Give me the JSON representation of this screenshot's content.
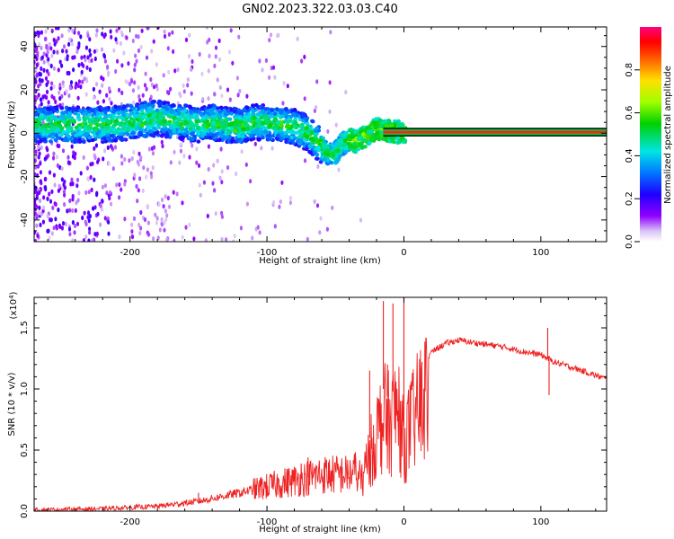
{
  "title": "GN02.2023.322.03.03.C40",
  "chart_data": [
    {
      "type": "heatmap",
      "name": "spectrogram",
      "xlabel": "Height of straight line (km)",
      "ylabel": "Frequency (Hz)",
      "xlim": [
        -270,
        148
      ],
      "ylim": [
        -50,
        49
      ],
      "xticks": [
        -200,
        -100,
        0,
        100
      ],
      "yticks": [
        40,
        20,
        0,
        -20,
        -40
      ],
      "ridge": {
        "x": [
          -270,
          -240,
          -220,
          -200,
          -190,
          -180,
          -170,
          -160,
          -150,
          -140,
          -130,
          -120,
          -110,
          -100,
          -90,
          -80,
          -70,
          -60,
          -55,
          -50,
          -45,
          -40,
          -35,
          -30,
          -25,
          -20,
          -15,
          -10,
          -5,
          0,
          10,
          20,
          40,
          60,
          80,
          100,
          120,
          148
        ],
        "y": [
          4,
          4,
          4,
          5,
          6,
          7,
          6,
          5,
          4,
          5,
          4,
          3,
          5,
          5,
          4,
          3,
          0,
          -6,
          -10,
          -9,
          -5,
          -3,
          -4,
          -2,
          0,
          2,
          1,
          1,
          0.5,
          0.5,
          0.5,
          0.5,
          0.5,
          0.5,
          0.5,
          0.5,
          0.5,
          0.5
        ]
      },
      "tone_line": {
        "x_start": -15,
        "x_end": 148,
        "y": 0.5
      }
    },
    {
      "type": "colorbar",
      "label": "Normalized spectral amplitude",
      "range": [
        0,
        1
      ],
      "ticks": [
        "0.0",
        "0.2",
        "0.4",
        "0.6",
        "0.8"
      ],
      "tick_values": [
        0,
        0.2,
        0.4,
        0.6,
        0.8
      ]
    },
    {
      "type": "line",
      "name": "snr",
      "xlabel": "Height of straight line (km)",
      "ylabel": "SNR (10 * v/v)",
      "scale_label": "(x10",
      "scale_exp": "4",
      "scale_close": ")",
      "xlim": [
        -270,
        148
      ],
      "ylim": [
        0,
        1.75
      ],
      "xticks": [
        -200,
        -100,
        0,
        100
      ],
      "yticks": [
        "0.0",
        "0.5",
        "1.0",
        "1.5"
      ],
      "ytick_values": [
        0,
        0.5,
        1.0,
        1.5
      ],
      "color": "#ee2222",
      "envelope": {
        "x": [
          -270,
          -220,
          -180,
          -150,
          -120,
          -100,
          -80,
          -60,
          -40,
          -30,
          -25,
          -20,
          -15,
          -10,
          -5,
          0,
          5,
          10,
          15,
          20,
          30,
          40,
          50,
          70,
          90,
          100,
          110,
          130,
          148
        ],
        "y": [
          0.01,
          0.02,
          0.04,
          0.08,
          0.15,
          0.2,
          0.25,
          0.3,
          0.3,
          0.35,
          0.6,
          0.8,
          1.0,
          0.9,
          1.1,
          0.7,
          0.9,
          1.05,
          1.2,
          1.3,
          1.37,
          1.4,
          1.38,
          1.35,
          1.3,
          1.28,
          1.22,
          1.15,
          1.08
        ]
      },
      "spikes": [
        {
          "x": -150,
          "y": 0.15
        },
        {
          "x": -75,
          "y": 0.39
        },
        {
          "x": -70,
          "y": 0.44
        },
        {
          "x": -45,
          "y": 0.36
        },
        {
          "x": -25,
          "y": 1.15
        },
        {
          "x": -15,
          "y": 1.72
        },
        {
          "x": -12,
          "y": 1.2
        },
        {
          "x": -8,
          "y": 1.7
        },
        {
          "x": 0,
          "y": 1.75
        },
        {
          "x": 105,
          "y": 1.5
        },
        {
          "x": 106,
          "y": 0.95
        }
      ]
    }
  ]
}
